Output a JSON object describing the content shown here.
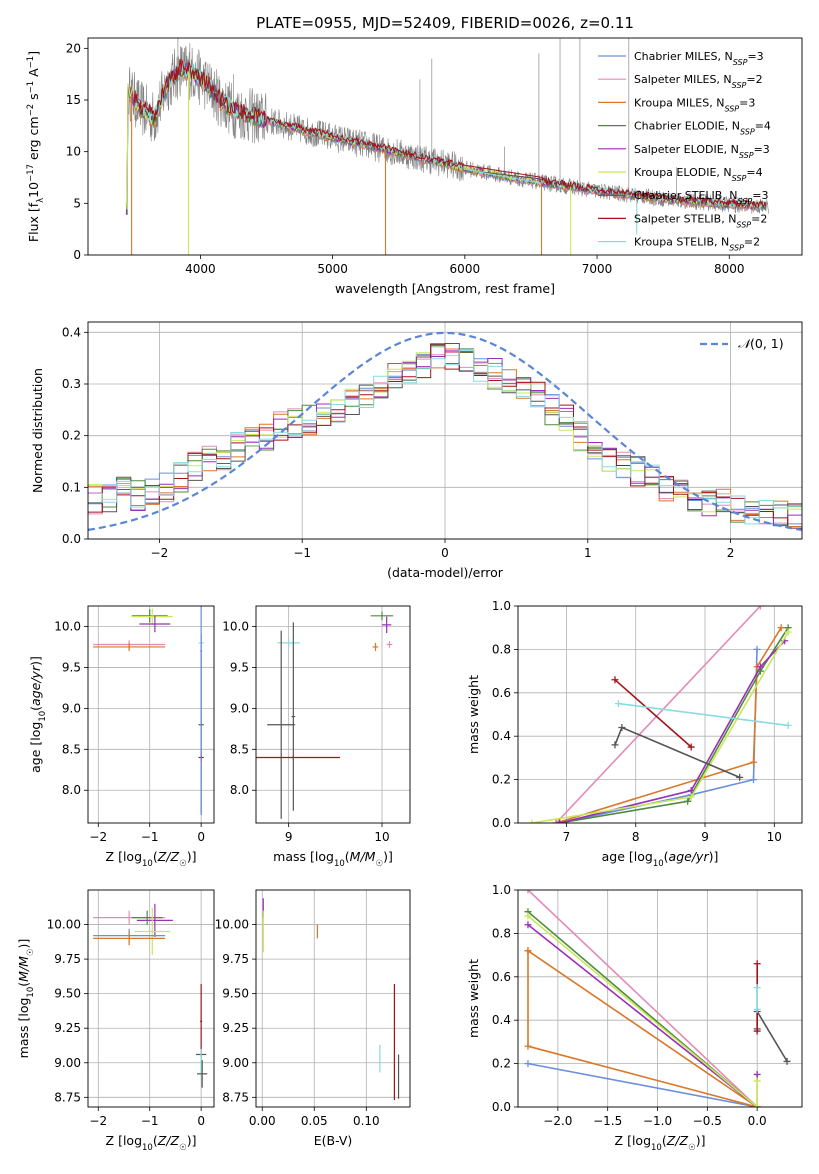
{
  "colors": {
    "chab_miles": "#6a8fdc",
    "salp_miles": "#e58ab7",
    "krou_miles": "#d9772a",
    "chab_elod": "#4e8a3e",
    "salp_elod": "#9930b8",
    "krou_elod": "#c8e85a",
    "chab_stel": "#555555",
    "salp_stel": "#a3131b",
    "krou_stel": "#88dbe0",
    "data": "#808080",
    "gauss": "#5b86d6",
    "grid": "#b0b0b0"
  },
  "chart_data": [
    {
      "id": "spectrum",
      "type": "line",
      "title": "PLATE=0955, MJD=52409, FIBERID=0026, z=0.11",
      "xlabel": "wavelength [Angstrom, rest frame]",
      "ylabel": "Flux [fλ10⁻¹⁷ erg cm⁻² s⁻¹ A⁻¹]",
      "xlim": [
        3150,
        8550
      ],
      "ylim": [
        0,
        21
      ],
      "xticks": [
        "4000",
        "5000",
        "6000",
        "7000",
        "8000"
      ],
      "yticks": [
        "0",
        "5",
        "10",
        "15",
        "20"
      ],
      "grid": false,
      "legend_placement": "upper-right",
      "legend": [
        "Chabrier MILES, N_SSP=3",
        "Salpeter MILES, N_SSP=2",
        "Kroupa MILES, N_SSP=3",
        "Chabrier ELODIE, N_SSP=4",
        "Salpeter ELODIE, N_SSP=3",
        "Kroupa ELODIE, N_SSP=4",
        "Chabrier STELIB, N_SSP=3",
        "Salpeter STELIB, N_SSP=2",
        "Kroupa STELIB, N_SSP=2"
      ],
      "legend_parts": [
        {
          "label": "Chabrier MILES, N",
          "sub": "SSP",
          "tail": "=3"
        },
        {
          "label": "Salpeter MILES, N",
          "sub": "SSP",
          "tail": "=2"
        },
        {
          "label": "Kroupa MILES, N",
          "sub": "SSP",
          "tail": "=3"
        },
        {
          "label": "Chabrier ELODIE, N",
          "sub": "SSP",
          "tail": "=4"
        },
        {
          "label": "Salpeter ELODIE, N",
          "sub": "SSP",
          "tail": "=3"
        },
        {
          "label": "Kroupa ELODIE, N",
          "sub": "SSP",
          "tail": "=4"
        },
        {
          "label": "Chabrier STELIB, N",
          "sub": "SSP",
          "tail": "=3"
        },
        {
          "label": "Salpeter STELIB, N",
          "sub": "SSP",
          "tail": "=2"
        },
        {
          "label": "Kroupa STELIB, N",
          "sub": "SSP",
          "tail": "=2"
        }
      ],
      "continuum": [
        [
          3450,
          16.0
        ],
        [
          3550,
          14.2
        ],
        [
          3650,
          13.2
        ],
        [
          3750,
          16.5
        ],
        [
          3850,
          18.0
        ],
        [
          3950,
          17.6
        ],
        [
          4050,
          16.5
        ],
        [
          4150,
          15.0
        ],
        [
          4250,
          14.0
        ],
        [
          4400,
          13.4
        ],
        [
          4600,
          12.7
        ],
        [
          4800,
          12.0
        ],
        [
          5000,
          11.4
        ],
        [
          5200,
          10.8
        ],
        [
          5400,
          10.2
        ],
        [
          5600,
          9.6
        ],
        [
          5800,
          9.0
        ],
        [
          6000,
          8.4
        ],
        [
          6200,
          7.9
        ],
        [
          6400,
          7.4
        ],
        [
          6600,
          7.0
        ],
        [
          6800,
          6.6
        ],
        [
          7000,
          6.2
        ],
        [
          7200,
          5.9
        ],
        [
          7400,
          5.6
        ],
        [
          7600,
          5.3
        ],
        [
          7800,
          5.1
        ],
        [
          8000,
          4.9
        ],
        [
          8300,
          4.7
        ]
      ],
      "data_spikes": [
        [
          3830,
          21
        ],
        [
          3920,
          20.5
        ],
        [
          4250,
          17.5
        ],
        [
          5660,
          17
        ],
        [
          5750,
          19
        ],
        [
          6300,
          10.5
        ],
        [
          6560,
          19.5
        ],
        [
          6720,
          21
        ],
        [
          6870,
          21
        ],
        [
          7240,
          21
        ],
        [
          7600,
          8.5
        ]
      ],
      "model_dips": [
        [
          3480,
          0,
          "krou_miles"
        ],
        [
          3910,
          0,
          "krou_elod"
        ],
        [
          5400,
          0,
          "krou_miles"
        ],
        [
          6580,
          0,
          "krou_miles"
        ],
        [
          6800,
          0,
          "krou_elod"
        ],
        [
          7300,
          2,
          "krou_stel"
        ]
      ]
    },
    {
      "id": "residuals",
      "type": "line",
      "xlabel": "(data-model)/error",
      "ylabel": "Normed distribution",
      "xlim": [
        -2.5,
        2.5
      ],
      "ylim": [
        0,
        0.42
      ],
      "xticks": [
        "-2",
        "-1",
        "0",
        "1",
        "2"
      ],
      "yticks": [
        "0.0",
        "0.1",
        "0.2",
        "0.3",
        "0.4"
      ],
      "grid": true,
      "legend_placement": "upper-right",
      "legend": [
        "N(0,1)"
      ],
      "gaussian": {
        "mean": 0,
        "sigma": 1
      },
      "histogram_bins": 50,
      "histogram_shape": [
        0.075,
        0.08,
        0.09,
        0.085,
        0.095,
        0.1,
        0.12,
        0.14,
        0.15,
        0.16,
        0.18,
        0.19,
        0.2,
        0.22,
        0.225,
        0.23,
        0.24,
        0.25,
        0.26,
        0.28,
        0.3,
        0.32,
        0.33,
        0.34,
        0.35,
        0.35,
        0.34,
        0.33,
        0.32,
        0.31,
        0.3,
        0.28,
        0.25,
        0.23,
        0.2,
        0.18,
        0.16,
        0.14,
        0.13,
        0.12,
        0.1,
        0.09,
        0.08,
        0.075,
        0.07,
        0.06,
        0.055,
        0.05,
        0.045,
        0.04
      ]
    },
    {
      "id": "age_vs_Z",
      "type": "scatter",
      "xlabel": "Z [log10(Z/Z☉)]",
      "ylabel": "age [log10(age/yr)]",
      "xlim": [
        -2.2,
        0.25
      ],
      "ylim": [
        7.6,
        10.25
      ],
      "xticks": [
        "-2",
        "-1",
        "0"
      ],
      "yticks": [
        "8.0",
        "8.5",
        "9.0",
        "9.5",
        "10.0"
      ],
      "grid": true,
      "points": [
        {
          "k": "chab_elod",
          "x": -1.0,
          "xe": 0.35,
          "y": 10.13,
          "ye": 0.08
        },
        {
          "k": "krou_elod",
          "x": -0.95,
          "xe": 0.4,
          "y": 10.12,
          "ye": 0.1
        },
        {
          "k": "salp_elod",
          "x": -0.9,
          "xe": 0.3,
          "y": 10.03,
          "ye": 0.1
        },
        {
          "k": "salp_miles",
          "x": -1.4,
          "xe": 0.7,
          "y": 9.78,
          "ye": 0.05
        },
        {
          "k": "krou_miles",
          "x": -1.4,
          "xe": 0.7,
          "y": 9.75,
          "ye": 0.05
        },
        {
          "k": "chab_stel",
          "x": 0.0,
          "xe": 0.05,
          "y": 8.8,
          "ye": 1.1
        },
        {
          "k": "krou_stel",
          "x": 0.0,
          "xe": 0.05,
          "y": 9.8,
          "ye": 0.1
        },
        {
          "k": "salp_stel",
          "x": 0.0,
          "xe": 0.05,
          "y": 8.4,
          "ye": 0.05
        },
        {
          "k": "chab_miles",
          "x": 0.0,
          "xe": 0.02,
          "y": 9.7,
          "ye": 2.0
        }
      ]
    },
    {
      "id": "age_vs_mass",
      "type": "scatter",
      "xlabel": "mass [log10(M/M☉)]",
      "ylabel": "",
      "xlim": [
        8.65,
        10.3
      ],
      "ylim": [
        7.6,
        10.25
      ],
      "xticks": [
        "9",
        "10"
      ],
      "yticks": [
        "8.0",
        "8.5",
        "9.0",
        "9.5",
        "10.0"
      ],
      "grid": true,
      "points": [
        {
          "k": "chab_elod",
          "x": 10.0,
          "xe": 0.12,
          "y": 10.13,
          "ye": 0.05
        },
        {
          "k": "salp_elod",
          "x": 10.05,
          "xe": 0.05,
          "y": 10.02,
          "ye": 0.1
        },
        {
          "k": "krou_miles",
          "x": 9.93,
          "xe": 0.03,
          "y": 9.75,
          "ye": 0.05
        },
        {
          "k": "salp_miles",
          "x": 10.08,
          "xe": 0.03,
          "y": 9.78,
          "ye": 0.04
        },
        {
          "k": "krou_stel",
          "x": 9.0,
          "xe": 0.12,
          "y": 9.8,
          "ye": 0.05
        },
        {
          "k": "chab_stel",
          "x": 8.92,
          "xe": 0.15,
          "y": 8.8,
          "ye": 1.15
        },
        {
          "k": "salp_stel",
          "x": 9.05,
          "xe": 0.5,
          "y": 8.4,
          "ye": 0.03
        },
        {
          "k": "chab_stel",
          "x": 9.05,
          "xe": 0.02,
          "y": 8.9,
          "ye": 1.15
        }
      ]
    },
    {
      "id": "mass_weight_vs_age",
      "type": "line",
      "xlabel": "age [log10(age/yr)]",
      "ylabel": "mass weight",
      "xlim": [
        6.3,
        10.4
      ],
      "ylim": [
        0,
        1
      ],
      "xticks": [
        "7",
        "8",
        "9",
        "10"
      ],
      "yticks": [
        "0.0",
        "0.2",
        "0.4",
        "0.6",
        "0.8",
        "1.0"
      ],
      "grid": true,
      "series": [
        {
          "k": "chab_miles",
          "pts": [
            [
              6.9,
              0.0
            ],
            [
              8.8,
              0.13
            ],
            [
              9.7,
              0.2
            ],
            [
              9.75,
              0.8
            ]
          ]
        },
        {
          "k": "salp_miles",
          "pts": [
            [
              6.85,
              0.0
            ],
            [
              9.8,
              1.0
            ]
          ]
        },
        {
          "k": "krou_miles",
          "pts": [
            [
              6.85,
              0.0
            ],
            [
              9.7,
              0.28
            ],
            [
              9.75,
              0.72
            ],
            [
              10.1,
              0.9
            ]
          ]
        },
        {
          "k": "chab_elod",
          "pts": [
            [
              6.9,
              0.0
            ],
            [
              8.75,
              0.1
            ],
            [
              9.8,
              0.7
            ],
            [
              10.2,
              0.9
            ]
          ]
        },
        {
          "k": "salp_elod",
          "pts": [
            [
              6.9,
              0.0
            ],
            [
              8.8,
              0.15
            ],
            [
              9.8,
              0.72
            ],
            [
              10.15,
              0.84
            ]
          ]
        },
        {
          "k": "krou_elod",
          "pts": [
            [
              6.5,
              0.0
            ],
            [
              8.8,
              0.12
            ],
            [
              10.2,
              0.88
            ]
          ]
        },
        {
          "k": "chab_stel",
          "pts": [
            [
              7.7,
              0.36
            ],
            [
              7.8,
              0.44
            ],
            [
              9.5,
              0.21
            ]
          ]
        },
        {
          "k": "salp_stel",
          "pts": [
            [
              7.7,
              0.66
            ],
            [
              8.8,
              0.35
            ]
          ]
        },
        {
          "k": "krou_stel",
          "pts": [
            [
              7.75,
              0.55
            ],
            [
              10.2,
              0.45
            ]
          ]
        }
      ]
    },
    {
      "id": "mass_vs_Z",
      "type": "scatter",
      "xlabel": "Z [log10(Z/Z☉)]",
      "ylabel": "mass [log10(M/M☉)]",
      "xlim": [
        -2.2,
        0.25
      ],
      "ylim": [
        8.68,
        10.25
      ],
      "xticks": [
        "-2",
        "-1",
        "0"
      ],
      "yticks": [
        "8.75",
        "9.00",
        "9.25",
        "9.50",
        "9.75",
        "10.00"
      ],
      "grid": true,
      "points": [
        {
          "k": "salp_miles",
          "x": -1.4,
          "xe": 0.7,
          "y": 10.05,
          "ye": 0.05
        },
        {
          "k": "salp_elod",
          "x": -0.9,
          "xe": 0.35,
          "y": 10.03,
          "ye": 0.12
        },
        {
          "k": "chab_elod",
          "x": -1.05,
          "xe": 0.3,
          "y": 10.05,
          "ye": 0.05
        },
        {
          "k": "krou_elod",
          "x": -0.95,
          "xe": 0.35,
          "y": 9.95,
          "ye": 0.17
        },
        {
          "k": "chab_miles",
          "x": -1.4,
          "xe": 0.7,
          "y": 9.92,
          "ye": 0.05
        },
        {
          "k": "krou_miles",
          "x": -1.4,
          "xe": 0.7,
          "y": 9.9,
          "ye": 0.05
        },
        {
          "k": "salp_stel",
          "x": 0.0,
          "xe": 0.02,
          "y": 9.3,
          "ye": 0.27
        },
        {
          "k": "chab_stel",
          "x": 0.0,
          "xe": 0.1,
          "y": 9.06,
          "ye": 0.01
        },
        {
          "k": "krou_stel",
          "x": 0.0,
          "xe": 0.02,
          "y": 9.0,
          "ye": 0.1
        },
        {
          "k": "chab_stel",
          "x": 0.02,
          "xe": 0.1,
          "y": 8.92,
          "ye": 0.1
        }
      ]
    },
    {
      "id": "mass_vs_ebv",
      "type": "scatter",
      "xlabel": "E(B-V)",
      "ylabel": "",
      "xlim": [
        -0.006,
        0.142
      ],
      "ylim": [
        8.68,
        10.25
      ],
      "xticks": [
        "0.00",
        "0.05",
        "0.10"
      ],
      "yticks": [
        "8.75",
        "9.00",
        "9.25",
        "9.50",
        "9.75",
        "10.00"
      ],
      "grid": true,
      "points": [
        {
          "k": "salp_elod",
          "x": 0.001,
          "xe": 0,
          "y": 10.12,
          "ye": 0.07
        },
        {
          "k": "krou_elod",
          "x": 0.001,
          "xe": 0,
          "y": 9.95,
          "ye": 0.15
        },
        {
          "k": "krou_miles",
          "x": 0.053,
          "xe": 0,
          "y": 9.95,
          "ye": 0.05
        },
        {
          "k": "krou_stel",
          "x": 0.113,
          "xe": 0,
          "y": 9.03,
          "ye": 0.1
        },
        {
          "k": "salp_stel",
          "x": 0.127,
          "xe": 0,
          "y": 9.15,
          "ye": 0.42
        },
        {
          "k": "chab_stel",
          "x": 0.131,
          "xe": 0,
          "y": 8.9,
          "ye": 0.16
        }
      ]
    },
    {
      "id": "mass_weight_vs_Z",
      "type": "line",
      "xlabel": "Z [log10(Z/Z☉)]",
      "ylabel": "mass weight",
      "xlim": [
        -2.4,
        0.45
      ],
      "ylim": [
        0,
        1
      ],
      "xticks": [
        "-2.0",
        "-1.5",
        "-1.0",
        "-0.5",
        "0.0"
      ],
      "yticks": [
        "0.0",
        "0.2",
        "0.4",
        "0.6",
        "0.8",
        "1.0"
      ],
      "grid": true,
      "series": [
        {
          "k": "chab_miles",
          "pts": [
            [
              -2.3,
              0.2
            ],
            [
              0.0,
              0.0
            ]
          ]
        },
        {
          "k": "salp_miles",
          "pts": [
            [
              -2.3,
              1.0
            ],
            [
              0.0,
              0.0
            ]
          ]
        },
        {
          "k": "krou_miles",
          "pts": [
            [
              -2.3,
              0.72
            ],
            [
              -2.3,
              0.28
            ],
            [
              0.0,
              0.0
            ],
            [
              -2.3,
              0.72
            ]
          ]
        },
        {
          "k": "chab_elod",
          "pts": [
            [
              -2.3,
              0.9
            ],
            [
              0.0,
              0.0
            ]
          ]
        },
        {
          "k": "salp_elod",
          "pts": [
            [
              -2.3,
              0.84
            ],
            [
              0.0,
              0.0
            ],
            [
              0.0,
              0.15
            ]
          ]
        },
        {
          "k": "krou_elod",
          "pts": [
            [
              -2.3,
              0.88
            ],
            [
              0.0,
              0.0
            ],
            [
              0.0,
              0.12
            ]
          ]
        },
        {
          "k": "chab_stel",
          "pts": [
            [
              0.0,
              0.36
            ],
            [
              0.0,
              0.44
            ],
            [
              0.3,
              0.21
            ]
          ]
        },
        {
          "k": "salp_stel",
          "pts": [
            [
              0.0,
              0.66
            ],
            [
              0.0,
              0.35
            ]
          ]
        },
        {
          "k": "krou_stel",
          "pts": [
            [
              0.0,
              0.55
            ],
            [
              0.0,
              0.45
            ]
          ]
        }
      ]
    }
  ]
}
